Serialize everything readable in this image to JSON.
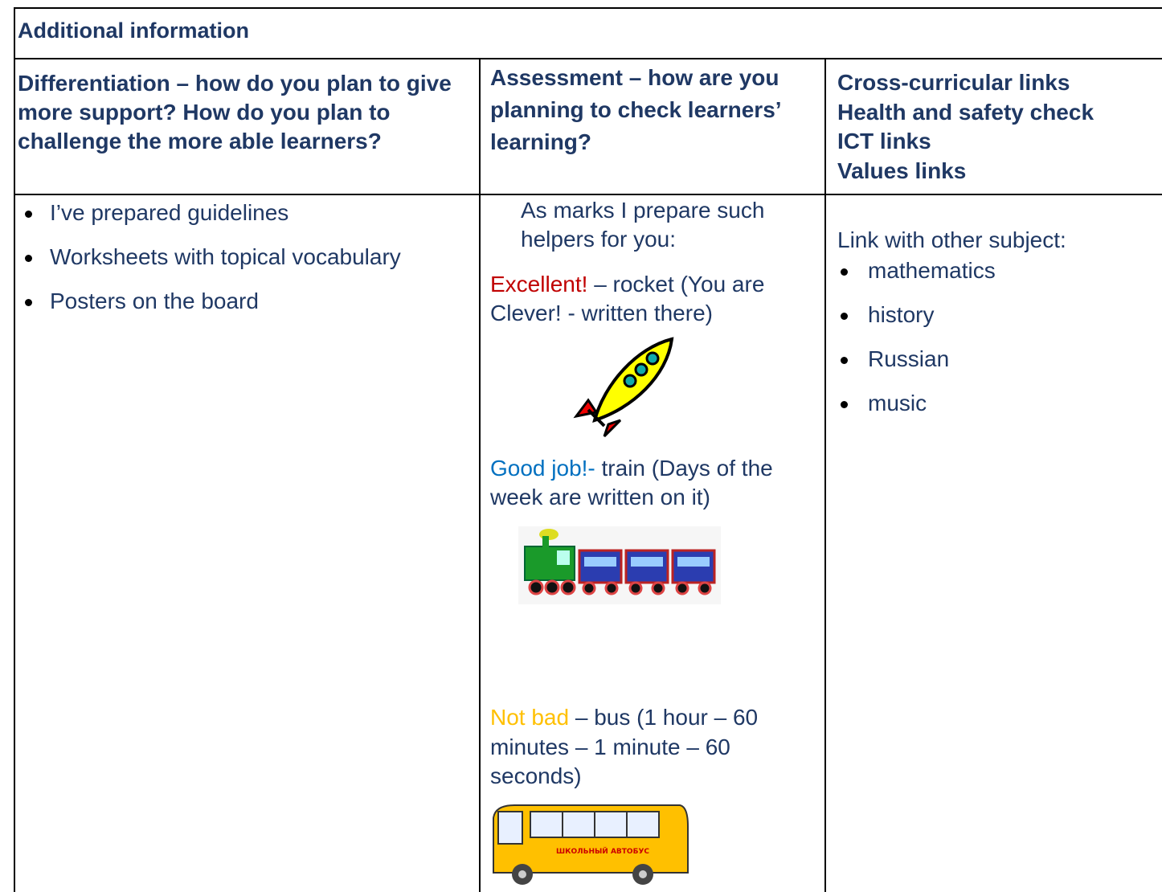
{
  "header": {
    "title": "Additional information"
  },
  "table": {
    "columns": [
      {
        "heading": "Differentiation – how do you plan to give more support? How do you plan to challenge the more able learners?"
      },
      {
        "heading": "Assessment – how are you planning to check learners’ learning?"
      },
      {
        "heading_lines": [
          "Cross-curricular links",
          "Health and safety check",
          "ICT links",
          "Values links"
        ]
      }
    ],
    "differentiation": {
      "items": [
        "I’ve prepared guidelines",
        "Worksheets with topical vocabulary",
        "Posters on the board"
      ]
    },
    "assessment": {
      "intro": "As marks I prepare such helpers for you:",
      "marks": [
        {
          "label": "Excellent!",
          "text": "– rocket (You are Clever! - written there)"
        },
        {
          "label": "Good job!-",
          "text": "train (Days of the week are written on it)"
        },
        {
          "label": "Not bad",
          "text": "– bus (1 hour – 60 minutes – 1 minute – 60 seconds)"
        }
      ],
      "bus_sign": "ШКОЛЬНЫЙ АВТОБУС"
    },
    "links": {
      "intro": "Link with other subject:",
      "items": [
        "mathematics",
        "history",
        "Russian",
        "music"
      ]
    }
  }
}
